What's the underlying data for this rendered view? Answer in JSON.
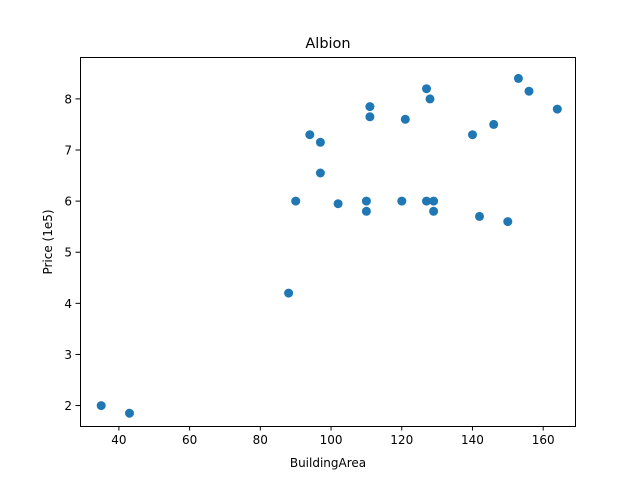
{
  "chart_data": {
    "type": "scatter",
    "title": "Albion",
    "xlabel": "BuildingArea",
    "ylabel": "Price (1e5)",
    "xlim": [
      29,
      169
    ],
    "ylim": [
      1.6,
      8.8
    ],
    "xticks": [
      40,
      60,
      80,
      100,
      120,
      140,
      160
    ],
    "yticks": [
      2,
      3,
      4,
      5,
      6,
      7,
      8
    ],
    "grid": false,
    "color": "#1f77b4",
    "points": [
      {
        "x": 35,
        "y": 2.0
      },
      {
        "x": 43,
        "y": 1.85
      },
      {
        "x": 88,
        "y": 4.2
      },
      {
        "x": 90,
        "y": 6.0
      },
      {
        "x": 94,
        "y": 7.3
      },
      {
        "x": 97,
        "y": 7.15
      },
      {
        "x": 97,
        "y": 6.55
      },
      {
        "x": 102,
        "y": 5.95
      },
      {
        "x": 110,
        "y": 6.0
      },
      {
        "x": 110,
        "y": 5.8
      },
      {
        "x": 111,
        "y": 7.85
      },
      {
        "x": 111,
        "y": 7.65
      },
      {
        "x": 120,
        "y": 6.0
      },
      {
        "x": 121,
        "y": 7.6
      },
      {
        "x": 127,
        "y": 8.2
      },
      {
        "x": 127,
        "y": 6.0
      },
      {
        "x": 128,
        "y": 8.0
      },
      {
        "x": 129,
        "y": 6.0
      },
      {
        "x": 129,
        "y": 5.8
      },
      {
        "x": 140,
        "y": 7.3
      },
      {
        "x": 142,
        "y": 5.7
      },
      {
        "x": 146,
        "y": 7.5
      },
      {
        "x": 150,
        "y": 5.6
      },
      {
        "x": 153,
        "y": 8.4
      },
      {
        "x": 156,
        "y": 8.15
      },
      {
        "x": 164,
        "y": 7.8
      }
    ]
  }
}
